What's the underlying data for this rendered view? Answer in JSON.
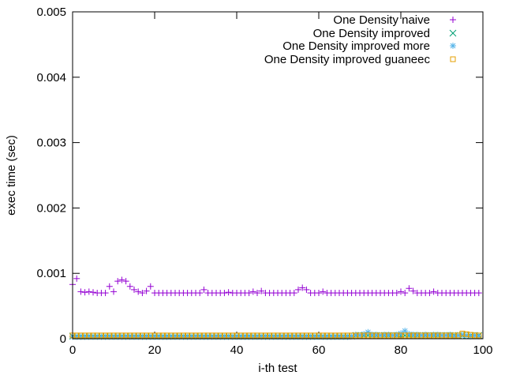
{
  "chart_data": {
    "type": "scatter",
    "xlabel": "i-th test",
    "ylabel": "exec time (sec)",
    "xlim": [
      0,
      100
    ],
    "ylim": [
      0,
      0.005
    ],
    "x_ticks": [
      "0",
      "20",
      "40",
      "60",
      "80",
      "100"
    ],
    "y_ticks": [
      "0",
      "0.001",
      "0.002",
      "0.003",
      "0.004",
      "0.005"
    ],
    "grid": false,
    "legend_position": "top-right",
    "series": [
      {
        "name": "One Density naive",
        "marker": "plus",
        "color": "#9400d3",
        "x": [
          0,
          1,
          2,
          3,
          4,
          5,
          6,
          7,
          8,
          9,
          10,
          11,
          12,
          13,
          14,
          15,
          16,
          17,
          18,
          19,
          20,
          21,
          22,
          23,
          24,
          25,
          26,
          27,
          28,
          29,
          30,
          31,
          32,
          33,
          34,
          35,
          36,
          37,
          38,
          39,
          40,
          41,
          42,
          43,
          44,
          45,
          46,
          47,
          48,
          49,
          50,
          51,
          52,
          53,
          54,
          55,
          56,
          57,
          58,
          59,
          60,
          61,
          62,
          63,
          64,
          65,
          66,
          67,
          68,
          69,
          70,
          71,
          72,
          73,
          74,
          75,
          76,
          77,
          78,
          79,
          80,
          81,
          82,
          83,
          84,
          85,
          86,
          87,
          88,
          89,
          90,
          91,
          92,
          93,
          94,
          95,
          96,
          97,
          98,
          99
        ],
        "values": [
          0.00083,
          0.00092,
          0.00072,
          0.00071,
          0.00072,
          0.00071,
          0.0007,
          0.0007,
          0.0007,
          0.0008,
          0.00072,
          0.00088,
          0.0009,
          0.00088,
          0.0008,
          0.00075,
          0.00072,
          0.0007,
          0.00073,
          0.0008,
          0.0007,
          0.0007,
          0.0007,
          0.0007,
          0.0007,
          0.0007,
          0.0007,
          0.0007,
          0.0007,
          0.0007,
          0.0007,
          0.0007,
          0.00075,
          0.0007,
          0.0007,
          0.0007,
          0.0007,
          0.0007,
          0.00071,
          0.0007,
          0.0007,
          0.0007,
          0.0007,
          0.0007,
          0.00072,
          0.0007,
          0.00073,
          0.0007,
          0.0007,
          0.0007,
          0.0007,
          0.0007,
          0.0007,
          0.0007,
          0.0007,
          0.00075,
          0.00078,
          0.00075,
          0.0007,
          0.0007,
          0.0007,
          0.00072,
          0.0007,
          0.0007,
          0.0007,
          0.0007,
          0.0007,
          0.0007,
          0.0007,
          0.0007,
          0.0007,
          0.0007,
          0.0007,
          0.0007,
          0.0007,
          0.0007,
          0.0007,
          0.0007,
          0.0007,
          0.0007,
          0.00072,
          0.0007,
          0.00077,
          0.00073,
          0.0007,
          0.0007,
          0.0007,
          0.0007,
          0.00072,
          0.0007,
          0.0007,
          0.0007,
          0.0007,
          0.0007,
          0.0007,
          0.0007,
          0.0007,
          0.0007,
          0.0007,
          0.0007
        ]
      },
      {
        "name": "One Density improved",
        "marker": "cross",
        "color": "#009e73",
        "x": [
          0,
          1,
          2,
          3,
          4,
          5,
          6,
          7,
          8,
          9,
          10,
          11,
          12,
          13,
          14,
          15,
          16,
          17,
          18,
          19,
          20,
          21,
          22,
          23,
          24,
          25,
          26,
          27,
          28,
          29,
          30,
          31,
          32,
          33,
          34,
          35,
          36,
          37,
          38,
          39,
          40,
          41,
          42,
          43,
          44,
          45,
          46,
          47,
          48,
          49,
          50,
          51,
          52,
          53,
          54,
          55,
          56,
          57,
          58,
          59,
          60,
          61,
          62,
          63,
          64,
          65,
          66,
          67,
          68,
          69,
          70,
          71,
          72,
          73,
          74,
          75,
          76,
          77,
          78,
          79,
          80,
          81,
          82,
          83,
          84,
          85,
          86,
          87,
          88,
          89,
          90,
          91,
          92,
          93,
          94,
          95,
          96,
          97,
          98,
          99
        ],
        "values": [
          4e-05,
          4e-05,
          4e-05,
          4e-05,
          4e-05,
          4e-05,
          4e-05,
          4e-05,
          4e-05,
          4e-05,
          4e-05,
          4e-05,
          4e-05,
          4e-05,
          4e-05,
          4e-05,
          4e-05,
          4e-05,
          4e-05,
          4e-05,
          4e-05,
          4e-05,
          4e-05,
          4e-05,
          4e-05,
          4e-05,
          4e-05,
          4e-05,
          4e-05,
          4e-05,
          4e-05,
          4e-05,
          4e-05,
          4e-05,
          4e-05,
          4e-05,
          4e-05,
          4e-05,
          4e-05,
          4e-05,
          4e-05,
          4e-05,
          4e-05,
          4e-05,
          4e-05,
          4e-05,
          4e-05,
          4e-05,
          4e-05,
          4e-05,
          4e-05,
          4e-05,
          4e-05,
          4e-05,
          4e-05,
          4e-05,
          4e-05,
          4e-05,
          4e-05,
          4e-05,
          4e-05,
          4e-05,
          4e-05,
          4e-05,
          4e-05,
          4e-05,
          4e-05,
          4e-05,
          4e-05,
          5e-05,
          5e-05,
          5e-05,
          5e-05,
          5e-05,
          5e-05,
          5e-05,
          5e-05,
          5e-05,
          5e-05,
          5e-05,
          5e-05,
          5e-05,
          5e-05,
          5e-05,
          5e-05,
          5e-05,
          5e-05,
          5e-05,
          5e-05,
          5e-05,
          5e-05,
          5e-05,
          5e-05,
          5e-05,
          5e-05,
          5e-05,
          5e-05,
          5e-05,
          5e-05,
          5e-05
        ]
      },
      {
        "name": "One Density improved more",
        "marker": "asterisk",
        "color": "#56b4e9",
        "x": [
          0,
          1,
          2,
          3,
          4,
          5,
          6,
          7,
          8,
          9,
          10,
          11,
          12,
          13,
          14,
          15,
          16,
          17,
          18,
          19,
          20,
          21,
          22,
          23,
          24,
          25,
          26,
          27,
          28,
          29,
          30,
          31,
          32,
          33,
          34,
          35,
          36,
          37,
          38,
          39,
          40,
          41,
          42,
          43,
          44,
          45,
          46,
          47,
          48,
          49,
          50,
          51,
          52,
          53,
          54,
          55,
          56,
          57,
          58,
          59,
          60,
          61,
          62,
          63,
          64,
          65,
          66,
          67,
          68,
          69,
          70,
          71,
          72,
          73,
          74,
          75,
          76,
          77,
          78,
          79,
          80,
          81,
          82,
          83,
          84,
          85,
          86,
          87,
          88,
          89,
          90,
          91,
          92,
          93,
          94,
          95,
          96,
          97,
          98,
          99
        ],
        "values": [
          3e-05,
          3e-05,
          3e-05,
          3e-05,
          3e-05,
          3e-05,
          3e-05,
          3e-05,
          3e-05,
          3e-05,
          3e-05,
          3e-05,
          3e-05,
          3e-05,
          3e-05,
          3e-05,
          3e-05,
          3e-05,
          3e-05,
          3e-05,
          3e-05,
          3e-05,
          3e-05,
          3e-05,
          3e-05,
          3e-05,
          3e-05,
          3e-05,
          3e-05,
          3e-05,
          3e-05,
          3e-05,
          3e-05,
          3e-05,
          3e-05,
          3e-05,
          3e-05,
          3e-05,
          3e-05,
          3e-05,
          3e-05,
          3e-05,
          3e-05,
          3e-05,
          3e-05,
          3e-05,
          3e-05,
          3e-05,
          3e-05,
          3e-05,
          3e-05,
          3e-05,
          3e-05,
          3e-05,
          3e-05,
          3e-05,
          3e-05,
          3e-05,
          3e-05,
          3e-05,
          3e-05,
          3e-05,
          3e-05,
          3e-05,
          3e-05,
          3e-05,
          3e-05,
          3e-05,
          4e-05,
          6e-05,
          5e-05,
          7e-05,
          0.0001,
          6e-05,
          6e-05,
          5e-05,
          6e-05,
          6e-05,
          5e-05,
          6e-05,
          8e-05,
          0.00012,
          7e-05,
          6e-05,
          6e-05,
          5e-05,
          6e-05,
          5e-05,
          6e-05,
          6e-05,
          5e-05,
          5e-05,
          6e-05,
          4e-05,
          5e-05,
          6e-05,
          5e-05,
          4e-05,
          5e-05,
          4e-05
        ]
      },
      {
        "name": "One Density improved guaneec",
        "marker": "square",
        "color": "#e69f00",
        "x": [
          0,
          1,
          2,
          3,
          4,
          5,
          6,
          7,
          8,
          9,
          10,
          11,
          12,
          13,
          14,
          15,
          16,
          17,
          18,
          19,
          20,
          21,
          22,
          23,
          24,
          25,
          26,
          27,
          28,
          29,
          30,
          31,
          32,
          33,
          34,
          35,
          36,
          37,
          38,
          39,
          40,
          41,
          42,
          43,
          44,
          45,
          46,
          47,
          48,
          49,
          50,
          51,
          52,
          53,
          54,
          55,
          56,
          57,
          58,
          59,
          60,
          61,
          62,
          63,
          64,
          65,
          66,
          67,
          68,
          69,
          70,
          71,
          72,
          73,
          74,
          75,
          76,
          77,
          78,
          79,
          80,
          81,
          82,
          83,
          84,
          85,
          86,
          87,
          88,
          89,
          90,
          91,
          92,
          93,
          94,
          95,
          96,
          97,
          98,
          99
        ],
        "values": [
          5e-05,
          5e-05,
          5e-05,
          5e-05,
          5e-05,
          5e-05,
          5e-05,
          5e-05,
          5e-05,
          5e-05,
          5e-05,
          5e-05,
          5e-05,
          5e-05,
          5e-05,
          5e-05,
          5e-05,
          5e-05,
          5e-05,
          5e-05,
          5e-05,
          5e-05,
          5e-05,
          5e-05,
          5e-05,
          5e-05,
          5e-05,
          5e-05,
          5e-05,
          5e-05,
          5e-05,
          5e-05,
          5e-05,
          5e-05,
          5e-05,
          5e-05,
          5e-05,
          5e-05,
          5e-05,
          5e-05,
          5e-05,
          5e-05,
          5e-05,
          5e-05,
          5e-05,
          5e-05,
          5e-05,
          5e-05,
          5e-05,
          5e-05,
          5e-05,
          5e-05,
          5e-05,
          5e-05,
          5e-05,
          5e-05,
          5e-05,
          5e-05,
          5e-05,
          5e-05,
          5e-05,
          5e-05,
          5e-05,
          5e-05,
          5e-05,
          5e-05,
          5e-05,
          5e-05,
          5e-05,
          5e-05,
          5e-05,
          5e-05,
          5e-05,
          5e-05,
          5e-05,
          5e-05,
          5e-05,
          5e-05,
          5e-05,
          5e-05,
          5e-05,
          5e-05,
          5e-05,
          5e-05,
          5e-05,
          5e-05,
          5e-05,
          5e-05,
          5e-05,
          5e-05,
          5e-05,
          5e-05,
          5e-05,
          5e-05,
          5e-05,
          8e-05,
          7e-05,
          6e-05,
          5e-05,
          5e-05
        ]
      }
    ]
  }
}
